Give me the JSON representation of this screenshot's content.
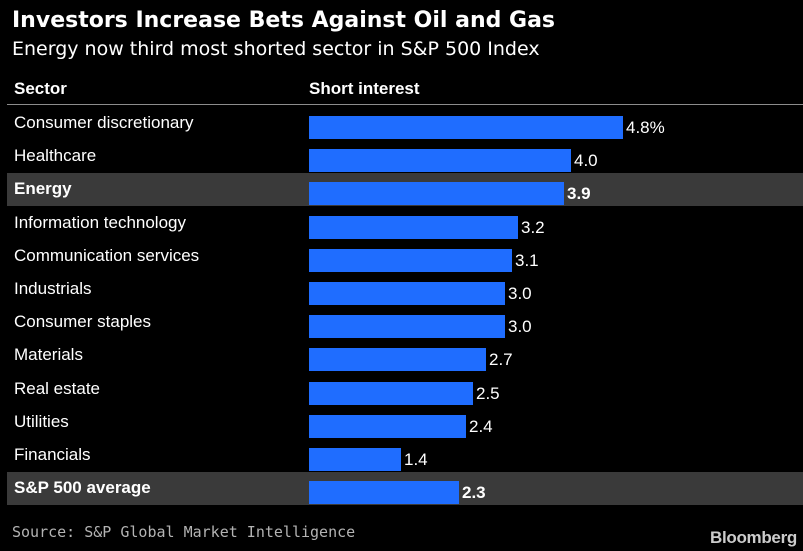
{
  "header": {
    "title": "Investors Increase Bets Against Oil and Gas",
    "subtitle": "Energy now third most shorted sector in S&P 500 Index"
  },
  "columns": {
    "sector": "Sector",
    "interest": "Short interest"
  },
  "chart_data": {
    "type": "bar",
    "orientation": "horizontal",
    "categories": [
      "Consumer discretionary",
      "Healthcare",
      "Energy",
      "Information technology",
      "Communication services",
      "Industrials",
      "Consumer staples",
      "Materials",
      "Real estate",
      "Utilities",
      "Financials",
      "S&P 500 average"
    ],
    "values": [
      4.8,
      4.0,
      3.9,
      3.2,
      3.1,
      3.0,
      3.0,
      2.7,
      2.5,
      2.4,
      1.4,
      2.3
    ],
    "value_labels": [
      "4.8%",
      "4.0",
      "3.9",
      "3.2",
      "3.1",
      "3.0",
      "3.0",
      "2.7",
      "2.5",
      "2.4",
      "1.4",
      "2.3"
    ],
    "highlighted": [
      "Energy",
      "S&P 500 average"
    ],
    "bar_color": "#1f6dff",
    "highlight_row_color": "#3a3a3a",
    "xlim": [
      0,
      4.8
    ],
    "grid": false,
    "title": "Investors Increase Bets Against Oil and Gas",
    "subtitle": "Energy now third most shorted sector in S&P 500 Index",
    "xlabel": "Short interest",
    "ylabel": "Sector"
  },
  "footer": {
    "source": "Source: S&P Global Market Intelligence",
    "brand": "Bloomberg"
  }
}
